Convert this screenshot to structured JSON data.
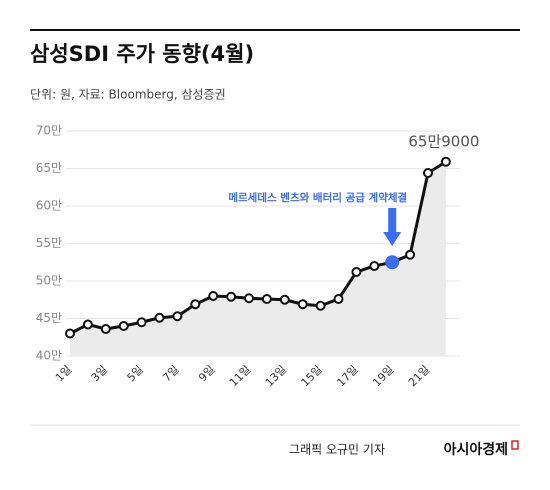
{
  "chart_data": {
    "type": "line",
    "title": "삼성SDI 주가 동향(4월)",
    "subtitle": "단위: 원, 자료: Bloomberg, 삼성증권",
    "categories": [
      "1일",
      null,
      "3일",
      null,
      "5일",
      null,
      "7일",
      null,
      "9일",
      null,
      "11일",
      null,
      "13일",
      null,
      "15일",
      null,
      "17일",
      null,
      "19일",
      null,
      "21일",
      null
    ],
    "series": [
      {
        "name": "삼성SDI",
        "color": "#111111",
        "values": [
          430000,
          442000,
          436000,
          440000,
          445000,
          451000,
          453000,
          469000,
          480000,
          479000,
          477000,
          476000,
          475000,
          469000,
          467000,
          476000,
          512000,
          520000,
          525000,
          535000,
          644000,
          659000
        ],
        "value_labels": [
          null,
          null,
          null,
          null,
          null,
          null,
          null,
          null,
          null,
          null,
          null,
          null,
          null,
          null,
          null,
          null,
          null,
          null,
          null,
          null,
          null,
          "65만9000"
        ]
      }
    ],
    "ylim": [
      400000,
      700000
    ],
    "yticks": [
      {
        "value": 400000,
        "label": "40만"
      },
      {
        "value": 450000,
        "label": "45만"
      },
      {
        "value": 500000,
        "label": "50만"
      },
      {
        "value": 550000,
        "label": "55만"
      },
      {
        "value": 600000,
        "label": "60만"
      },
      {
        "value": 650000,
        "label": "65만"
      },
      {
        "value": 700000,
        "label": "70만"
      }
    ],
    "grid": true,
    "area_color": "#ebebeb",
    "highlight": {
      "index": 18,
      "color": "#3a6df0",
      "annotation": "메르세데스 벤츠와 배터리 공급 계약체결"
    }
  },
  "footer": {
    "credit": "그래픽 오규민 기자",
    "brand": "아시아경제"
  }
}
